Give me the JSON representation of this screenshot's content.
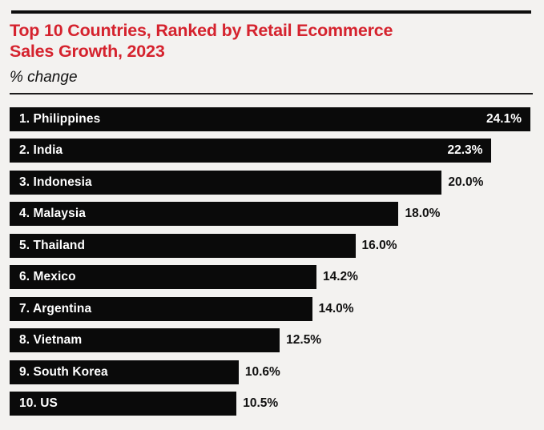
{
  "header": {
    "title_line1": "Top 10 Countries, Ranked by Retail Ecommerce",
    "title_line2": "Sales Growth, 2023",
    "subtitle": "% change"
  },
  "colors": {
    "title_red": "#d5232e",
    "bar_black": "#0a0a0a",
    "background": "#f3f2f0",
    "label_white": "#ffffff",
    "label_black": "#111111"
  },
  "chart_data": {
    "type": "bar",
    "orientation": "horizontal",
    "title": "Top 10 Countries, Ranked by Retail Ecommerce Sales Growth, 2023",
    "subtitle": "% change",
    "categories": [
      "1. Philippines",
      "2. India",
      "3. Indonesia",
      "4. Malaysia",
      "5. Thailand",
      "6. Mexico",
      "7. Argentina",
      "8. Vietnam",
      "9. South Korea",
      "10. US"
    ],
    "values": [
      24.1,
      22.3,
      20.0,
      18.0,
      16.0,
      14.2,
      14.0,
      12.5,
      10.6,
      10.5
    ],
    "value_labels": [
      "24.1%",
      "22.3%",
      "20.0%",
      "18.0%",
      "16.0%",
      "14.2%",
      "14.0%",
      "12.5%",
      "10.6%",
      "10.5%"
    ],
    "xlim": [
      0,
      24.1
    ],
    "grid": false,
    "legend": "none"
  }
}
